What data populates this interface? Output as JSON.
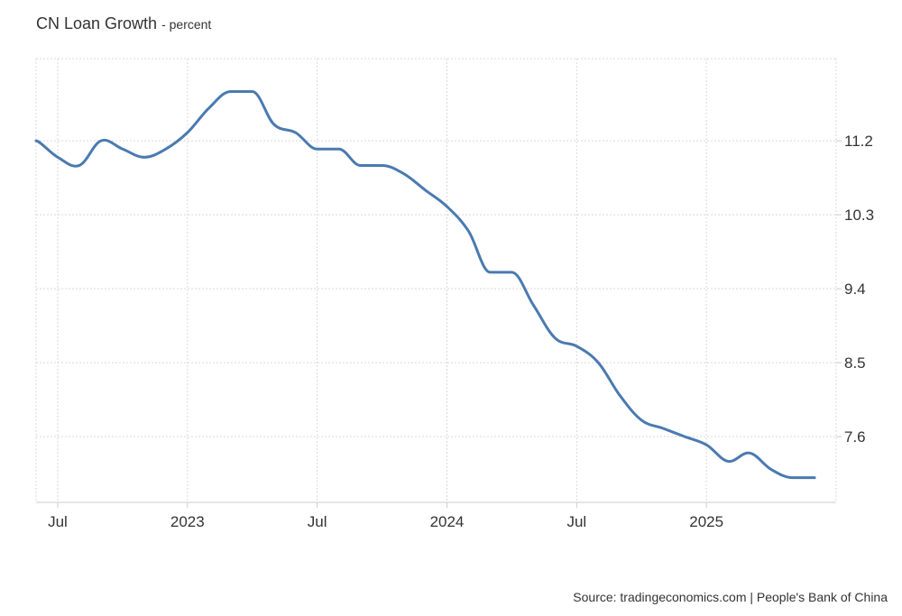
{
  "header": {
    "title": "CN Loan Growth",
    "unit": "- percent"
  },
  "footer": {
    "source": "Source: tradingeconomics.com | People's Bank of China"
  },
  "colors": {
    "line": "#4a7ab0",
    "grid": "#d9d9d9",
    "axis": "#cccccc",
    "text": "#333333"
  },
  "chart_data": {
    "type": "line",
    "title": "CN Loan Growth",
    "subtitle": "- percent",
    "xlabel": "",
    "ylabel": "",
    "y_axis_side": "right",
    "grid": true,
    "ylim": [
      6.8,
      12.2
    ],
    "y_ticks": [
      7.6,
      8.5,
      9.4,
      10.3,
      11.2
    ],
    "x_range": [
      "2022-05",
      "2025-06"
    ],
    "x_ticks": [
      {
        "date": "2022-06",
        "label": "Jul"
      },
      {
        "date": "2022-12",
        "label": "2023"
      },
      {
        "date": "2023-06",
        "label": "Jul"
      },
      {
        "date": "2023-12",
        "label": "2024"
      },
      {
        "date": "2024-06",
        "label": "Jul"
      },
      {
        "date": "2024-12",
        "label": "2025"
      }
    ],
    "series": [
      {
        "values": [
          {
            "date": "2022-05",
            "value": 11.2
          },
          {
            "date": "2022-06",
            "value": 11.0
          },
          {
            "date": "2022-07",
            "value": 10.9
          },
          {
            "date": "2022-08",
            "value": 11.2
          },
          {
            "date": "2022-09",
            "value": 11.1
          },
          {
            "date": "2022-10",
            "value": 11.0
          },
          {
            "date": "2022-11",
            "value": 11.1
          },
          {
            "date": "2022-12",
            "value": 11.3
          },
          {
            "date": "2023-01",
            "value": 11.6
          },
          {
            "date": "2023-02",
            "value": 11.8
          },
          {
            "date": "2023-03",
            "value": 11.8
          },
          {
            "date": "2023-04",
            "value": 11.4
          },
          {
            "date": "2023-05",
            "value": 11.3
          },
          {
            "date": "2023-06",
            "value": 11.1
          },
          {
            "date": "2023-07",
            "value": 11.1
          },
          {
            "date": "2023-08",
            "value": 10.9
          },
          {
            "date": "2023-09",
            "value": 10.9
          },
          {
            "date": "2023-10",
            "value": 10.8
          },
          {
            "date": "2023-11",
            "value": 10.6
          },
          {
            "date": "2023-12",
            "value": 10.4
          },
          {
            "date": "2024-01",
            "value": 10.1
          },
          {
            "date": "2024-02",
            "value": 9.6
          },
          {
            "date": "2024-03",
            "value": 9.6
          },
          {
            "date": "2024-04",
            "value": 9.2
          },
          {
            "date": "2024-05",
            "value": 8.8
          },
          {
            "date": "2024-06",
            "value": 8.7
          },
          {
            "date": "2024-07",
            "value": 8.5
          },
          {
            "date": "2024-08",
            "value": 8.1
          },
          {
            "date": "2024-09",
            "value": 7.8
          },
          {
            "date": "2024-10",
            "value": 7.7
          },
          {
            "date": "2024-11",
            "value": 7.6
          },
          {
            "date": "2024-12",
            "value": 7.5
          },
          {
            "date": "2025-01",
            "value": 7.3
          },
          {
            "date": "2025-02",
            "value": 7.4
          },
          {
            "date": "2025-03",
            "value": 7.2
          },
          {
            "date": "2025-04",
            "value": 7.1
          },
          {
            "date": "2025-05",
            "value": 7.1
          }
        ]
      }
    ]
  }
}
